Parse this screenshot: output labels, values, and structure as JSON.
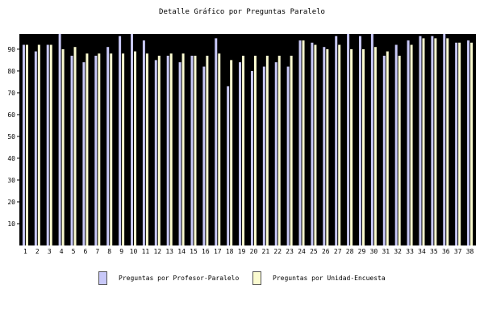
{
  "chart_data": {
    "type": "bar",
    "title": "Detalle Gráfico por Preguntas Paralelo",
    "categories": [
      "1",
      "2",
      "3",
      "4",
      "5",
      "6",
      "7",
      "8",
      "9",
      "10",
      "11",
      "12",
      "13",
      "14",
      "15",
      "16",
      "17",
      "18",
      "19",
      "20",
      "21",
      "22",
      "23",
      "24",
      "25",
      "26",
      "27",
      "28",
      "29",
      "30",
      "31",
      "32",
      "33",
      "34",
      "35",
      "36",
      "37",
      "38"
    ],
    "series": [
      {
        "name": "Preguntas por Profesor-Paralelo",
        "color": "#c8c8f8",
        "values": [
          92,
          89,
          92,
          97,
          87,
          84,
          87,
          91,
          96,
          97,
          94,
          85,
          87,
          84,
          87,
          82,
          95,
          73,
          84,
          80,
          82,
          84,
          82,
          94,
          93,
          91,
          96,
          97,
          96,
          97,
          87,
          92,
          94,
          96,
          96,
          97,
          93,
          94
        ]
      },
      {
        "name": "Preguntas por Unidad-Encuesta",
        "color": "#fbfbd0",
        "values": [
          92,
          92,
          92,
          90,
          91,
          88,
          88,
          88,
          88,
          89,
          88,
          87,
          88,
          88,
          87,
          87,
          88,
          85,
          87,
          87,
          87,
          87,
          87,
          94,
          92,
          90,
          92,
          90,
          90,
          91,
          89,
          87,
          92,
          95,
          95,
          95,
          93,
          93
        ]
      }
    ],
    "yticks": [
      10,
      20,
      30,
      40,
      50,
      60,
      70,
      80,
      90
    ],
    "ylim": [
      0,
      97
    ],
    "background": "#000000",
    "legend_position": "bottom"
  }
}
